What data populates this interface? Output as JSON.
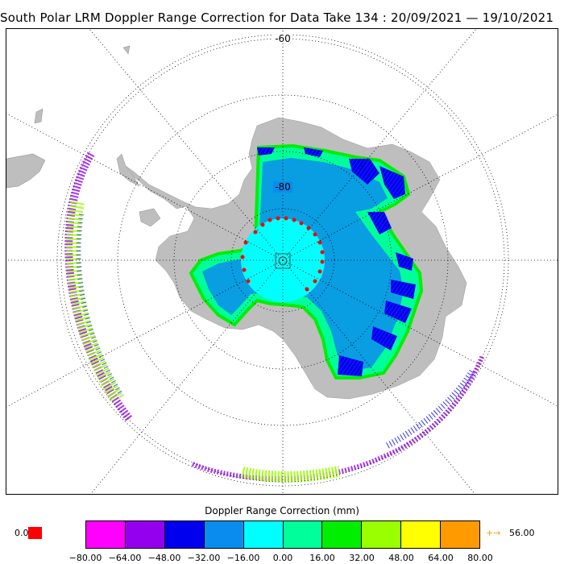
{
  "title": "South Polar LRM Doppler Range Correction for Data Take 134 : 20/09/2021 — 19/10/2021",
  "map": {
    "lat_labels": [
      "-60",
      "-80"
    ],
    "colors": {
      "land": "#bebebe",
      "graticule": "#000000"
    }
  },
  "legend": {
    "title": "Doppler Range Correction (mm)",
    "null_value": "0.0",
    "null_color": "#ff0000",
    "colors": [
      "#ff00ff",
      "#9400ee",
      "#0000ee",
      "#0a8cee",
      "#00ffff",
      "#00ff9a",
      "#00ee00",
      "#9aff00",
      "#ffff00",
      "#ff9a00"
    ],
    "ticks": [
      "−80.00",
      "−64.00",
      "−48.00",
      "−32.00",
      "−16.00",
      "0.00",
      "16.00",
      "32.00",
      "48.00",
      "64.00",
      "80.00"
    ],
    "over_arrow": "+→",
    "over_value": "56.00",
    "over_color": "#ff9a00"
  }
}
